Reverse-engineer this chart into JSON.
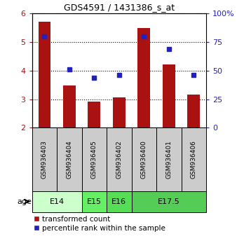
{
  "title": "GDS4591 / 1431386_s_at",
  "samples": [
    "GSM936403",
    "GSM936404",
    "GSM936405",
    "GSM936402",
    "GSM936400",
    "GSM936401",
    "GSM936406"
  ],
  "bar_values": [
    5.72,
    3.47,
    2.92,
    3.06,
    5.49,
    4.22,
    3.17
  ],
  "dot_values": [
    80,
    51,
    44,
    46,
    80,
    69,
    46
  ],
  "bar_color": "#AA1111",
  "dot_color": "#2222BB",
  "ylim_left": [
    2,
    6
  ],
  "ylim_right": [
    0,
    100
  ],
  "yticks_left": [
    2,
    3,
    4,
    5,
    6
  ],
  "yticks_right": [
    0,
    25,
    50,
    75,
    100
  ],
  "ytick_labels_right": [
    "0",
    "25",
    "50",
    "75",
    "100%"
  ],
  "age_groups": [
    {
      "label": "E14",
      "start": 0,
      "end": 2,
      "color": "#CCFFCC"
    },
    {
      "label": "E15",
      "start": 2,
      "end": 3,
      "color": "#66EE66"
    },
    {
      "label": "E16",
      "start": 3,
      "end": 4,
      "color": "#55DD55"
    },
    {
      "label": "E17.5",
      "start": 4,
      "end": 7,
      "color": "#55CC55"
    }
  ],
  "legend_bar_label": "transformed count",
  "legend_dot_label": "percentile rank within the sample",
  "sample_box_color": "#CCCCCC"
}
